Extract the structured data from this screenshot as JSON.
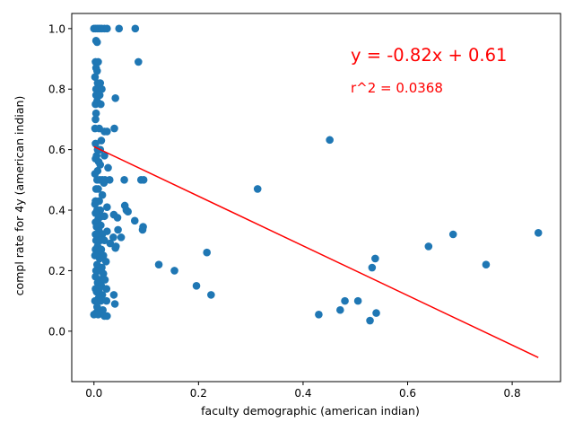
{
  "chart_data": {
    "type": "scatter",
    "title": "",
    "xlabel": "faculty demographic (american indian)",
    "ylabel": "compl rate for 4y (american indian)",
    "xlim": [
      -0.0425,
      0.8925
    ],
    "ylim": [
      -0.1667,
      1.05
    ],
    "xticks": [
      0.0,
      0.2,
      0.4,
      0.6,
      0.8
    ],
    "xtick_labels": [
      "0.0",
      "0.2",
      "0.4",
      "0.6",
      "0.8"
    ],
    "yticks": [
      0.0,
      0.2,
      0.4,
      0.6,
      0.8,
      1.0
    ],
    "ytick_labels": [
      "0.0",
      "0.2",
      "0.4",
      "0.6",
      "0.8",
      "1.0"
    ],
    "grid": false,
    "point_color": "#1f77b4",
    "fit_color": "#ff0000",
    "annotations": [
      {
        "text": "y = -0.82x + 0.61",
        "x": 0.5,
        "y": 0.9,
        "color": "#ff0000",
        "size": "large"
      },
      {
        "text": "r^2 = 0.0368",
        "x": 0.5,
        "y": 0.8,
        "color": "#ff0000",
        "size": "medium"
      }
    ],
    "fit_line": {
      "slope": -0.82,
      "intercept": 0.61,
      "x_range": [
        0.0,
        0.85
      ]
    },
    "points": [
      [
        0.0,
        1.0
      ],
      [
        0.003,
        1.0
      ],
      [
        0.006,
        1.0
      ],
      [
        0.009,
        1.0
      ],
      [
        0.012,
        1.0
      ],
      [
        0.015,
        1.0
      ],
      [
        0.02,
        1.0
      ],
      [
        0.025,
        1.0
      ],
      [
        0.048,
        1.0
      ],
      [
        0.079,
        1.0
      ],
      [
        0.004,
        0.96
      ],
      [
        0.006,
        0.955
      ],
      [
        0.085,
        0.89
      ],
      [
        0.003,
        0.89
      ],
      [
        0.008,
        0.89
      ],
      [
        0.004,
        0.87
      ],
      [
        0.006,
        0.86
      ],
      [
        0.002,
        0.84
      ],
      [
        0.007,
        0.82
      ],
      [
        0.012,
        0.82
      ],
      [
        0.004,
        0.8
      ],
      [
        0.009,
        0.8
      ],
      [
        0.015,
        0.8
      ],
      [
        0.004,
        0.78
      ],
      [
        0.011,
        0.78
      ],
      [
        0.041,
        0.77
      ],
      [
        0.006,
        0.76
      ],
      [
        0.003,
        0.75
      ],
      [
        0.013,
        0.75
      ],
      [
        0.004,
        0.72
      ],
      [
        0.003,
        0.7
      ],
      [
        0.002,
        0.67
      ],
      [
        0.01,
        0.67
      ],
      [
        0.02,
        0.66
      ],
      [
        0.025,
        0.66
      ],
      [
        0.039,
        0.67
      ],
      [
        0.014,
        0.63
      ],
      [
        0.003,
        0.62
      ],
      [
        0.007,
        0.6
      ],
      [
        0.012,
        0.6
      ],
      [
        0.005,
        0.58
      ],
      [
        0.02,
        0.58
      ],
      [
        0.003,
        0.57
      ],
      [
        0.009,
        0.56
      ],
      [
        0.012,
        0.55
      ],
      [
        0.027,
        0.54
      ],
      [
        0.007,
        0.53
      ],
      [
        0.002,
        0.52
      ],
      [
        0.006,
        0.5
      ],
      [
        0.011,
        0.5
      ],
      [
        0.016,
        0.5
      ],
      [
        0.021,
        0.5
      ],
      [
        0.03,
        0.5
      ],
      [
        0.058,
        0.5
      ],
      [
        0.09,
        0.5
      ],
      [
        0.095,
        0.5
      ],
      [
        0.019,
        0.49
      ],
      [
        0.004,
        0.47
      ],
      [
        0.008,
        0.47
      ],
      [
        0.016,
        0.45
      ],
      [
        0.003,
        0.43
      ],
      [
        0.01,
        0.43
      ],
      [
        0.002,
        0.42
      ],
      [
        0.025,
        0.41
      ],
      [
        0.059,
        0.415
      ],
      [
        0.062,
        0.4
      ],
      [
        0.065,
        0.395
      ],
      [
        0.006,
        0.4
      ],
      [
        0.012,
        0.4
      ],
      [
        0.003,
        0.39
      ],
      [
        0.015,
        0.38
      ],
      [
        0.038,
        0.385
      ],
      [
        0.045,
        0.375
      ],
      [
        0.02,
        0.38
      ],
      [
        0.008,
        0.37
      ],
      [
        0.078,
        0.365
      ],
      [
        0.003,
        0.36
      ],
      [
        0.013,
        0.35
      ],
      [
        0.005,
        0.345
      ],
      [
        0.094,
        0.345
      ],
      [
        0.093,
        0.335
      ],
      [
        0.046,
        0.335
      ],
      [
        0.025,
        0.33
      ],
      [
        0.01,
        0.33
      ],
      [
        0.003,
        0.32
      ],
      [
        0.016,
        0.32
      ],
      [
        0.009,
        0.31
      ],
      [
        0.037,
        0.31
      ],
      [
        0.052,
        0.31
      ],
      [
        0.004,
        0.3
      ],
      [
        0.012,
        0.3
      ],
      [
        0.02,
        0.3
      ],
      [
        0.031,
        0.29
      ],
      [
        0.007,
        0.28
      ],
      [
        0.042,
        0.28
      ],
      [
        0.041,
        0.275
      ],
      [
        0.003,
        0.27
      ],
      [
        0.014,
        0.27
      ],
      [
        0.008,
        0.26
      ],
      [
        0.018,
        0.25
      ],
      [
        0.002,
        0.25
      ],
      [
        0.011,
        0.24
      ],
      [
        0.023,
        0.23
      ],
      [
        0.006,
        0.22
      ],
      [
        0.015,
        0.21
      ],
      [
        0.004,
        0.2
      ],
      [
        0.009,
        0.2
      ],
      [
        0.018,
        0.19
      ],
      [
        0.003,
        0.18
      ],
      [
        0.012,
        0.17
      ],
      [
        0.021,
        0.17
      ],
      [
        0.007,
        0.16
      ],
      [
        0.014,
        0.15
      ],
      [
        0.003,
        0.14
      ],
      [
        0.01,
        0.14
      ],
      [
        0.024,
        0.14
      ],
      [
        0.005,
        0.13
      ],
      [
        0.016,
        0.12
      ],
      [
        0.038,
        0.12
      ],
      [
        0.009,
        0.11
      ],
      [
        0.002,
        0.1
      ],
      [
        0.013,
        0.1
      ],
      [
        0.024,
        0.1
      ],
      [
        0.04,
        0.09
      ],
      [
        0.006,
        0.08
      ],
      [
        0.017,
        0.07
      ],
      [
        0.004,
        0.06
      ],
      [
        0.012,
        0.06
      ],
      [
        0.0,
        0.055
      ],
      [
        0.008,
        0.055
      ],
      [
        0.02,
        0.05
      ],
      [
        0.025,
        0.05
      ],
      [
        0.124,
        0.22
      ],
      [
        0.154,
        0.2
      ],
      [
        0.196,
        0.15
      ],
      [
        0.216,
        0.26
      ],
      [
        0.224,
        0.12
      ],
      [
        0.313,
        0.47
      ],
      [
        0.43,
        0.055
      ],
      [
        0.451,
        0.632
      ],
      [
        0.471,
        0.07
      ],
      [
        0.48,
        0.1
      ],
      [
        0.505,
        0.1
      ],
      [
        0.528,
        0.035
      ],
      [
        0.532,
        0.21
      ],
      [
        0.538,
        0.24
      ],
      [
        0.54,
        0.06
      ],
      [
        0.64,
        0.28
      ],
      [
        0.687,
        0.32
      ],
      [
        0.75,
        0.22
      ],
      [
        0.85,
        0.325
      ]
    ]
  }
}
